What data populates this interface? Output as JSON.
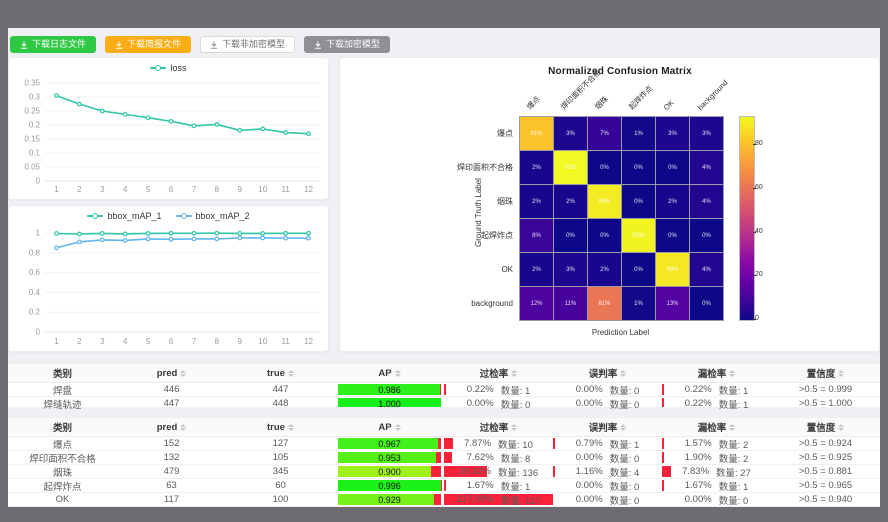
{
  "toolbar": {
    "buttons": [
      {
        "label": "下载日志文件",
        "style": "green"
      },
      {
        "label": "下载简报文件",
        "style": "orange"
      },
      {
        "label": "下载非加密模型",
        "style": "plain"
      },
      {
        "label": "下载加密模型",
        "style": "gray"
      }
    ]
  },
  "colors": {
    "series_teal": "#2fc7a5",
    "series_blue": "#63b4ee",
    "ap_rest_red": "#f8233b",
    "rate_bar_red": "#f8233b",
    "button_green": "#2fc845",
    "button_orange": "#faad14",
    "button_gray": "#8f8f96"
  },
  "chart_data": [
    {
      "type": "line",
      "title": "",
      "x": [
        1,
        2,
        3,
        4,
        5,
        6,
        7,
        8,
        9,
        10,
        11,
        12
      ],
      "series": [
        {
          "name": "loss",
          "color": "#2fc7a5",
          "values": [
            0.305,
            0.275,
            0.25,
            0.238,
            0.226,
            0.213,
            0.197,
            0.202,
            0.181,
            0.186,
            0.173,
            0.169
          ]
        }
      ],
      "ylim": [
        0,
        0.35
      ],
      "yticks": [
        0,
        0.05,
        0.1,
        0.15,
        0.2,
        0.25,
        0.3,
        0.35
      ],
      "legend_position": "top",
      "grid": true
    },
    {
      "type": "line",
      "title": "",
      "x": [
        1,
        2,
        3,
        4,
        5,
        6,
        7,
        8,
        9,
        10,
        11,
        12
      ],
      "series": [
        {
          "name": "bbox_mAP_1",
          "color": "#2fc7a5",
          "values": [
            0.995,
            0.99,
            0.996,
            0.991,
            0.996,
            0.997,
            0.997,
            0.998,
            0.996,
            0.996,
            0.997,
            0.997
          ]
        },
        {
          "name": "bbox_mAP_2",
          "color": "#63b4ee",
          "values": [
            0.85,
            0.91,
            0.93,
            0.925,
            0.94,
            0.936,
            0.94,
            0.94,
            0.95,
            0.95,
            0.948,
            0.948
          ]
        }
      ],
      "ylim": [
        0,
        1
      ],
      "yticks": [
        0,
        0.2,
        0.4,
        0.6,
        0.8,
        1
      ],
      "legend_position": "top",
      "grid": true
    },
    {
      "type": "heatmap",
      "title": "Normalized Confusion Matrix",
      "xlabel": "Prediction Label",
      "ylabel": "Ground Truth Label",
      "categories": [
        "爆点",
        "焊印面积不合格",
        "烟珠",
        "起焊炸点",
        "OK",
        "background"
      ],
      "rows": [
        [
          81,
          3,
          7,
          1,
          3,
          3
        ],
        [
          2,
          93,
          0,
          0,
          0,
          4
        ],
        [
          2,
          2,
          90,
          0,
          2,
          4
        ],
        [
          8,
          0,
          0,
          92,
          0,
          0
        ],
        [
          2,
          3,
          2,
          0,
          89,
          4
        ],
        [
          12,
          11,
          61,
          1,
          13,
          0
        ]
      ],
      "unit": "%",
      "colormap": "plasma",
      "vmax": 93,
      "colorbar_ticks": [
        0,
        20,
        40,
        60,
        80
      ],
      "legend_position": "right"
    }
  ],
  "tables": [
    {
      "headers": [
        "类别",
        "pred",
        "true",
        "AP",
        "过检率",
        "误判率",
        "漏检率",
        "置信度"
      ],
      "rows": [
        {
          "category": "焊盘",
          "pred": "446",
          "true": "447",
          "ap": {
            "value": 0.986,
            "label": "0.986"
          },
          "over": {
            "pct": 0.22,
            "label": "0.22%",
            "count": "数量: 1"
          },
          "mis": {
            "pct": 0,
            "label": "0.00%",
            "count": "数量: 0"
          },
          "miss": {
            "pct": 0.22,
            "label": "0.22%",
            "count": "数量: 1"
          },
          "conf": ">0.5 = 0.999"
        },
        {
          "category": "焊缝轨迹",
          "pred": "447",
          "true": "448",
          "ap": {
            "value": 1.0,
            "label": "1.000"
          },
          "over": {
            "pct": 0,
            "label": "0.00%",
            "count": "数量: 0"
          },
          "mis": {
            "pct": 0,
            "label": "0.00%",
            "count": "数量: 0"
          },
          "miss": {
            "pct": 0.22,
            "label": "0.22%",
            "count": "数量: 1"
          },
          "conf": ">0.5 = 1.000"
        }
      ]
    },
    {
      "headers": [
        "类别",
        "pred",
        "true",
        "AP",
        "过检率",
        "误判率",
        "漏检率",
        "置信度"
      ],
      "rows": [
        {
          "category": "爆点",
          "pred": "152",
          "true": "127",
          "ap": {
            "value": 0.967,
            "label": "0.967"
          },
          "over": {
            "pct": 7.87,
            "label": "7.87%",
            "count": "数量: 10"
          },
          "mis": {
            "pct": 0.79,
            "label": "0.79%",
            "count": "数量: 1"
          },
          "miss": {
            "pct": 1.57,
            "label": "1.57%",
            "count": "数量: 2"
          },
          "conf": ">0.5 = 0.924"
        },
        {
          "category": "焊印面积不合格",
          "pred": "132",
          "true": "105",
          "ap": {
            "value": 0.953,
            "label": "0.953"
          },
          "over": {
            "pct": 7.62,
            "label": "7.62%",
            "count": "数量: 8"
          },
          "mis": {
            "pct": 0,
            "label": "0.00%",
            "count": "数量: 0"
          },
          "miss": {
            "pct": 1.9,
            "label": "1.90%",
            "count": "数量: 2"
          },
          "conf": ">0.5 = 0.925"
        },
        {
          "category": "烟珠",
          "pred": "479",
          "true": "345",
          "ap": {
            "value": 0.9,
            "label": "0.900"
          },
          "over": {
            "pct": 39.42,
            "label": "39.42%",
            "count": "数量: 136"
          },
          "mis": {
            "pct": 1.16,
            "label": "1.16%",
            "count": "数量: 4"
          },
          "miss": {
            "pct": 7.83,
            "label": "7.83%",
            "count": "数量: 27"
          },
          "conf": ">0.5 = 0.881"
        },
        {
          "category": "起焊炸点",
          "pred": "63",
          "true": "60",
          "ap": {
            "value": 0.996,
            "label": "0.996"
          },
          "over": {
            "pct": 1.67,
            "label": "1.67%",
            "count": "数量: 1"
          },
          "mis": {
            "pct": 0,
            "label": "0.00%",
            "count": "数量: 0"
          },
          "miss": {
            "pct": 1.67,
            "label": "1.67%",
            "count": "数量: 1"
          },
          "conf": ">0.5 = 0.965"
        },
        {
          "category": "OK",
          "pred": "117",
          "true": "100",
          "ap": {
            "value": 0.929,
            "label": "0.929"
          },
          "over": {
            "pct": 117.0,
            "label": "117.00%",
            "count": "数量: 117"
          },
          "mis": {
            "pct": 0,
            "label": "0.00%",
            "count": "数量: 0"
          },
          "miss": {
            "pct": 0,
            "label": "0.00%",
            "count": "数量: 0"
          },
          "conf": ">0.5 = 0.940"
        }
      ]
    }
  ]
}
